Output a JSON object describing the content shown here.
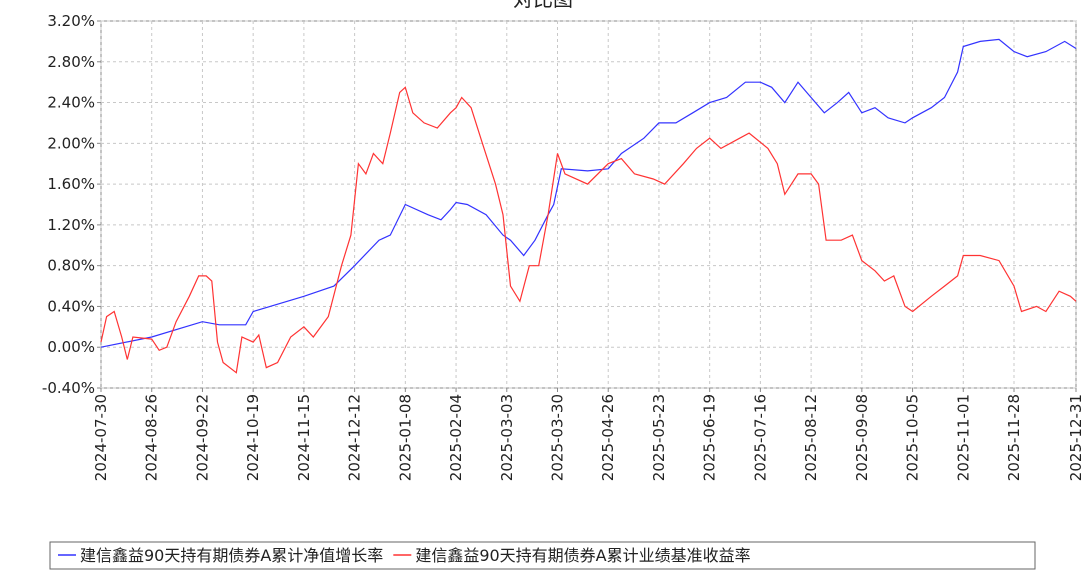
{
  "chart_data": {
    "type": "line",
    "title": "对比图",
    "xlim": [
      "2024-07-30",
      "2025-12-31"
    ],
    "xticks": [
      "2024-07-30",
      "2024-08-26",
      "2024-09-22",
      "2024-10-19",
      "2024-11-15",
      "2024-12-12",
      "2025-01-08",
      "2025-02-04",
      "2025-03-03",
      "2025-03-30",
      "2025-04-26",
      "2025-05-23",
      "2025-06-19",
      "2025-07-16",
      "2025-08-12",
      "2025-09-08",
      "2025-10-05",
      "2025-11-01",
      "2025-11-28",
      "2025-12-31"
    ],
    "ylim": [
      -0.4,
      3.2
    ],
    "yticks": [
      {
        "value": -0.4,
        "label": "-0.40%"
      },
      {
        "value": 0,
        "label": "0.00%"
      },
      {
        "value": 0.4,
        "label": "0.40%"
      },
      {
        "value": 0.8,
        "label": "0.80%"
      },
      {
        "value": 1.2,
        "label": "1.20%"
      },
      {
        "value": 1.6,
        "label": "1.60%"
      },
      {
        "value": 2.0,
        "label": "2.00%"
      },
      {
        "value": 2.4,
        "label": "2.40%"
      },
      {
        "value": 2.8,
        "label": "2.80%"
      },
      {
        "value": 3.2,
        "label": "3.20%"
      }
    ],
    "grid": true,
    "series": [
      {
        "name": "建信鑫益90天持有期债券A累计净值增长率",
        "color": "#3333ff",
        "x": [
          "2024-07-30",
          "2024-08-26",
          "2024-09-22",
          "2024-10-01",
          "2024-10-15",
          "2024-10-19",
          "2024-11-15",
          "2024-12-01",
          "2024-12-12",
          "2024-12-25",
          "2024-12-31",
          "2025-01-08",
          "2025-01-20",
          "2025-01-27",
          "2025-02-01",
          "2025-02-04",
          "2025-02-10",
          "2025-02-20",
          "2025-03-01",
          "2025-03-05",
          "2025-03-12",
          "2025-03-18",
          "2025-03-25",
          "2025-03-28",
          "2025-04-01",
          "2025-04-15",
          "2025-04-26",
          "2025-05-03",
          "2025-05-15",
          "2025-05-23",
          "2025-06-01",
          "2025-06-10",
          "2025-06-19",
          "2025-06-28",
          "2025-07-08",
          "2025-07-16",
          "2025-07-22",
          "2025-07-29",
          "2025-08-05",
          "2025-08-12",
          "2025-08-19",
          "2025-08-26",
          "2025-09-01",
          "2025-09-08",
          "2025-09-15",
          "2025-09-22",
          "2025-10-01",
          "2025-10-05",
          "2025-10-15",
          "2025-10-22",
          "2025-10-29",
          "2025-11-01",
          "2025-11-10",
          "2025-11-20",
          "2025-11-28",
          "2025-12-05",
          "2025-12-15",
          "2025-12-25",
          "2025-12-31"
        ],
        "values": [
          0,
          0.1,
          0.25,
          0.22,
          0.22,
          0.35,
          0.5,
          0.6,
          0.8,
          1.05,
          1.1,
          1.4,
          1.3,
          1.25,
          1.35,
          1.42,
          1.4,
          1.3,
          1.1,
          1.05,
          0.9,
          1.05,
          1.3,
          1.4,
          1.75,
          1.73,
          1.75,
          1.9,
          2.05,
          2.2,
          2.2,
          2.3,
          2.4,
          2.45,
          2.6,
          2.6,
          2.55,
          2.4,
          2.6,
          2.45,
          2.3,
          2.4,
          2.5,
          2.3,
          2.35,
          2.25,
          2.2,
          2.25,
          2.35,
          2.45,
          2.7,
          2.95,
          3.0,
          3.02,
          2.9,
          2.85,
          2.9,
          3.0,
          2.93
        ]
      },
      {
        "name": "建信鑫益90天持有期债券A累计业绩基准收益率",
        "color": "#ff3333",
        "x": [
          "2024-07-30",
          "2024-08-02",
          "2024-08-06",
          "2024-08-10",
          "2024-08-13",
          "2024-08-16",
          "2024-08-26",
          "2024-08-30",
          "2024-09-03",
          "2024-09-08",
          "2024-09-15",
          "2024-09-20",
          "2024-09-24",
          "2024-09-27",
          "2024-09-30",
          "2024-10-03",
          "2024-10-10",
          "2024-10-13",
          "2024-10-19",
          "2024-10-22",
          "2024-10-26",
          "2024-11-01",
          "2024-11-08",
          "2024-11-15",
          "2024-11-20",
          "2024-11-28",
          "2024-12-05",
          "2024-12-10",
          "2024-12-14",
          "2024-12-18",
          "2024-12-22",
          "2024-12-27",
          "2024-12-31",
          "2025-01-05",
          "2025-01-08",
          "2025-01-12",
          "2025-01-18",
          "2025-01-25",
          "2025-02-01",
          "2025-02-04",
          "2025-02-07",
          "2025-02-12",
          "2025-02-18",
          "2025-02-25",
          "2025-03-01",
          "2025-03-05",
          "2025-03-10",
          "2025-03-15",
          "2025-03-20",
          "2025-03-25",
          "2025-03-30",
          "2025-04-03",
          "2025-04-15",
          "2025-04-26",
          "2025-05-03",
          "2025-05-10",
          "2025-05-20",
          "2025-05-26",
          "2025-06-05",
          "2025-06-12",
          "2025-06-19",
          "2025-06-25",
          "2025-07-05",
          "2025-07-10",
          "2025-07-20",
          "2025-07-25",
          "2025-07-29",
          "2025-08-05",
          "2025-08-12",
          "2025-08-16",
          "2025-08-20",
          "2025-08-28",
          "2025-09-03",
          "2025-09-08",
          "2025-09-15",
          "2025-09-20",
          "2025-09-25",
          "2025-10-01",
          "2025-10-05",
          "2025-10-15",
          "2025-10-22",
          "2025-10-29",
          "2025-11-01",
          "2025-11-10",
          "2025-11-20",
          "2025-11-28",
          "2025-12-02",
          "2025-12-10",
          "2025-12-15",
          "2025-12-22",
          "2025-12-28",
          "2025-12-31"
        ],
        "values": [
          0.05,
          0.3,
          0.35,
          0.1,
          -0.12,
          0.1,
          0.08,
          -0.03,
          0,
          0.25,
          0.5,
          0.7,
          0.7,
          0.65,
          0.05,
          -0.15,
          -0.25,
          0.1,
          0.05,
          0.12,
          -0.2,
          -0.15,
          0.1,
          0.2,
          0.1,
          0.3,
          0.8,
          1.1,
          1.8,
          1.7,
          1.9,
          1.8,
          2.1,
          2.5,
          2.55,
          2.3,
          2.2,
          2.15,
          2.3,
          2.35,
          2.45,
          2.35,
          2.0,
          1.6,
          1.3,
          0.6,
          0.45,
          0.8,
          0.8,
          1.3,
          1.9,
          1.7,
          1.6,
          1.8,
          1.85,
          1.7,
          1.65,
          1.6,
          1.8,
          1.95,
          2.05,
          1.95,
          2.05,
          2.1,
          1.95,
          1.8,
          1.5,
          1.7,
          1.7,
          1.6,
          1.05,
          1.05,
          1.1,
          0.85,
          0.75,
          0.65,
          0.7,
          0.4,
          0.35,
          0.5,
          0.6,
          0.7,
          0.9,
          0.9,
          0.85,
          0.6,
          0.35,
          0.4,
          0.35,
          0.55,
          0.5,
          0.45
        ]
      }
    ]
  }
}
